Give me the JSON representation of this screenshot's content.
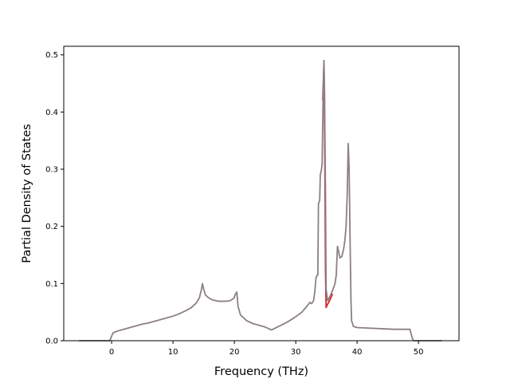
{
  "chart_data": {
    "type": "line",
    "title": "",
    "xlabel": "Frequency (THz)",
    "ylabel": "Partial Density of States",
    "xlim": [
      -7.8,
      56.6
    ],
    "ylim": [
      0.0,
      0.515
    ],
    "xticks": [
      0,
      10,
      20,
      30,
      40,
      50
    ],
    "yticks": [
      0.0,
      0.1,
      0.2,
      0.3,
      0.4,
      0.5
    ],
    "xtick_labels": [
      "0",
      "10",
      "20",
      "30",
      "40",
      "50"
    ],
    "ytick_labels": [
      "0.0",
      "0.1",
      "0.2",
      "0.3",
      "0.4",
      "0.5"
    ],
    "grid": false,
    "legend": null,
    "series": [
      {
        "color": "#d62728",
        "points": [
          [
            34.4,
            0.42
          ],
          [
            34.6,
            0.49
          ],
          [
            34.75,
            0.3
          ],
          [
            34.85,
            0.12
          ],
          [
            34.95,
            0.058
          ],
          [
            35.2,
            0.064
          ],
          [
            35.6,
            0.072
          ],
          [
            36.0,
            0.082
          ]
        ]
      },
      {
        "color": "#8c7f82",
        "points": [
          [
            -5.3,
            0.0
          ],
          [
            -0.3,
            0.0
          ],
          [
            0.0,
            0.008
          ],
          [
            0.2,
            0.013
          ],
          [
            0.5,
            0.015
          ],
          [
            1,
            0.017
          ],
          [
            2,
            0.02
          ],
          [
            3,
            0.023
          ],
          [
            4,
            0.026
          ],
          [
            5,
            0.029
          ],
          [
            6,
            0.031
          ],
          [
            7,
            0.034
          ],
          [
            8,
            0.037
          ],
          [
            9,
            0.04
          ],
          [
            10,
            0.043
          ],
          [
            11,
            0.047
          ],
          [
            12,
            0.052
          ],
          [
            13,
            0.058
          ],
          [
            13.8,
            0.066
          ],
          [
            14.3,
            0.075
          ],
          [
            14.6,
            0.088
          ],
          [
            14.8,
            0.1
          ],
          [
            15.0,
            0.09
          ],
          [
            15.3,
            0.08
          ],
          [
            15.8,
            0.075
          ],
          [
            16.5,
            0.071
          ],
          [
            17.5,
            0.069
          ],
          [
            18.5,
            0.069
          ],
          [
            19.3,
            0.07
          ],
          [
            19.9,
            0.074
          ],
          [
            20.2,
            0.082
          ],
          [
            20.4,
            0.085
          ],
          [
            20.6,
            0.06
          ],
          [
            21.0,
            0.045
          ],
          [
            22.0,
            0.035
          ],
          [
            23.0,
            0.03
          ],
          [
            24.0,
            0.027
          ],
          [
            25.0,
            0.024
          ],
          [
            25.6,
            0.021
          ],
          [
            26.0,
            0.019
          ],
          [
            26.3,
            0.02
          ],
          [
            27.0,
            0.024
          ],
          [
            28.0,
            0.029
          ],
          [
            29.0,
            0.035
          ],
          [
            30.0,
            0.042
          ],
          [
            31.0,
            0.05
          ],
          [
            31.8,
            0.06
          ],
          [
            32.3,
            0.067
          ],
          [
            32.6,
            0.065
          ],
          [
            32.9,
            0.07
          ],
          [
            33.1,
            0.085
          ],
          [
            33.3,
            0.11
          ],
          [
            33.5,
            0.115
          ],
          [
            33.6,
            0.115
          ],
          [
            33.7,
            0.24
          ],
          [
            33.9,
            0.245
          ],
          [
            34.0,
            0.29
          ],
          [
            34.2,
            0.3
          ],
          [
            34.3,
            0.31
          ],
          [
            34.45,
            0.42
          ],
          [
            34.6,
            0.49
          ],
          [
            34.7,
            0.43
          ],
          [
            34.85,
            0.25
          ],
          [
            34.95,
            0.09
          ],
          [
            35.2,
            0.07
          ],
          [
            35.6,
            0.078
          ],
          [
            36.0,
            0.088
          ],
          [
            36.4,
            0.1
          ],
          [
            36.6,
            0.115
          ],
          [
            36.8,
            0.165
          ],
          [
            37.0,
            0.155
          ],
          [
            37.2,
            0.145
          ],
          [
            37.5,
            0.147
          ],
          [
            37.8,
            0.16
          ],
          [
            38.0,
            0.175
          ],
          [
            38.2,
            0.2
          ],
          [
            38.4,
            0.26
          ],
          [
            38.55,
            0.345
          ],
          [
            38.7,
            0.3
          ],
          [
            38.85,
            0.18
          ],
          [
            39.0,
            0.07
          ],
          [
            39.1,
            0.035
          ],
          [
            39.4,
            0.025
          ],
          [
            40.0,
            0.023
          ],
          [
            42.0,
            0.022
          ],
          [
            44.0,
            0.021
          ],
          [
            46.0,
            0.02
          ],
          [
            48.0,
            0.02
          ],
          [
            48.6,
            0.02
          ],
          [
            48.8,
            0.012
          ],
          [
            49.0,
            0.004
          ],
          [
            49.2,
            0.0
          ],
          [
            53.8,
            0.0
          ]
        ]
      }
    ]
  }
}
